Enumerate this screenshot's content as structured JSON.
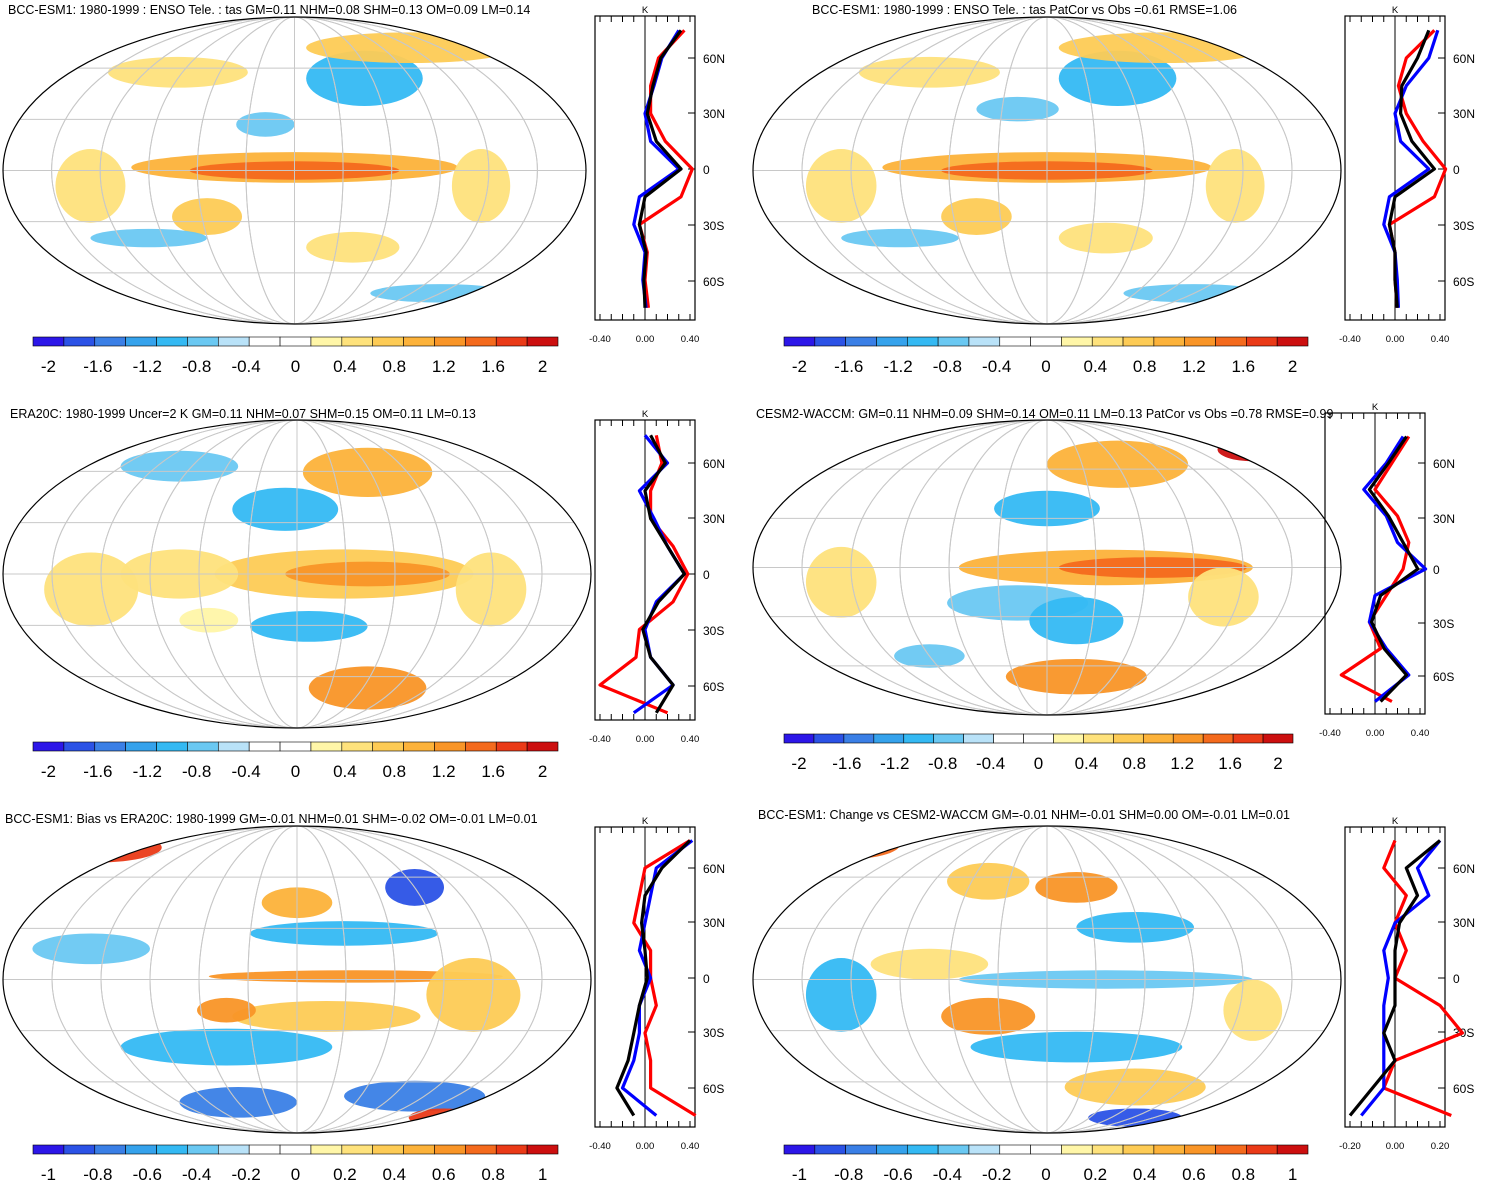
{
  "figure": {
    "colorscale": [
      "#2c16e8",
      "#2b52e6",
      "#3a7fe6",
      "#35a2ec",
      "#34b9f3",
      "#6ac8f2",
      "#b9e2f8",
      "#ffffff",
      "#ffffff",
      "#fff6a8",
      "#fee27c",
      "#fdcb55",
      "#fcb23a",
      "#f99527",
      "#f46a1d",
      "#ea3a17",
      "#cc0f0f"
    ],
    "series_colors": {
      "model": "#ff0000",
      "obs": "#0000ff",
      "ensemble": "#000000"
    }
  },
  "chart_data": [
    {
      "id": "p1",
      "type": "heatmap",
      "title": "BCC-ESM1: 1980-1999 : ENSO Tele. : tas GM=0.11 NHM=0.08 SHM=0.13 OM=0.09 LM=0.14",
      "colorbar_ticks": [
        "-2",
        "-1.6",
        "-1.2",
        "-0.8",
        "-0.4",
        "0",
        "0.4",
        "0.8",
        "1.2",
        "1.6",
        "2"
      ],
      "zonal": {
        "type": "line",
        "unit": "K",
        "xlim": [
          -0.4,
          0.4
        ],
        "xticks": [
          "-0.40",
          "0.00",
          "0.40"
        ],
        "lat_ticks": [
          "60N",
          "30N",
          "0",
          "30S",
          "60S"
        ],
        "lat": [
          75,
          60,
          45,
          30,
          15,
          0,
          -15,
          -30,
          -45,
          -60,
          -75
        ],
        "series": [
          {
            "color": "red",
            "values": [
              0.35,
              0.12,
              0.05,
              0.05,
              0.18,
              0.42,
              0.32,
              -0.05,
              0.02,
              0.0,
              0.03
            ]
          },
          {
            "color": "blue",
            "values": [
              0.3,
              0.15,
              0.08,
              0.0,
              0.05,
              0.3,
              -0.05,
              -0.1,
              0.0,
              -0.02,
              0.01
            ]
          },
          {
            "color": "black",
            "values": [
              0.32,
              0.14,
              0.07,
              0.02,
              0.1,
              0.32,
              0.0,
              -0.05,
              0.01,
              -0.01,
              0.0
            ]
          }
        ]
      }
    },
    {
      "id": "p2",
      "type": "heatmap",
      "title": "BCC-ESM1: 1980-1999 : ENSO Tele. : tas PatCor vs Obs =0.61 RMSE=1.06",
      "colorbar_ticks": [
        "-2",
        "-1.6",
        "-1.2",
        "-0.8",
        "-0.4",
        "0",
        "0.4",
        "0.8",
        "1.2",
        "1.6",
        "2"
      ],
      "zonal": {
        "type": "line",
        "unit": "K",
        "xlim": [
          -0.4,
          0.4
        ],
        "xticks": [
          "-0.40",
          "0.00",
          "0.40"
        ],
        "lat_ticks": [
          "60N",
          "30N",
          "0",
          "30S",
          "60S"
        ],
        "lat": [
          75,
          60,
          45,
          30,
          15,
          0,
          -15,
          -30,
          -45,
          -60,
          -75
        ],
        "series": [
          {
            "color": "red",
            "values": [
              0.35,
              0.1,
              0.03,
              0.1,
              0.25,
              0.45,
              0.35,
              -0.05,
              0.0,
              0.0,
              0.02
            ]
          },
          {
            "color": "blue",
            "values": [
              0.38,
              0.3,
              0.1,
              0.0,
              0.05,
              0.3,
              -0.05,
              -0.1,
              0.0,
              0.02,
              0.03
            ]
          },
          {
            "color": "black",
            "values": [
              0.3,
              0.2,
              0.06,
              0.05,
              0.15,
              0.35,
              0.0,
              -0.05,
              0.0,
              0.0,
              0.02
            ]
          }
        ]
      }
    },
    {
      "id": "p3",
      "type": "heatmap",
      "title": "ERA20C: 1980-1999 Uncer=2 K GM=0.11 NHM=0.07 SHM=0.15 OM=0.11 LM=0.13",
      "colorbar_ticks": [
        "-2",
        "-1.6",
        "-1.2",
        "-0.8",
        "-0.4",
        "0",
        "0.4",
        "0.8",
        "1.2",
        "1.6",
        "2"
      ],
      "zonal": {
        "type": "line",
        "unit": "K",
        "xlim": [
          -0.4,
          0.4
        ],
        "xticks": [
          "-0.40",
          "0.00",
          "0.40"
        ],
        "lat_ticks": [
          "60N",
          "30N",
          "0",
          "30S",
          "60S"
        ],
        "lat": [
          75,
          60,
          45,
          30,
          15,
          0,
          -15,
          -30,
          -45,
          -60,
          -75
        ],
        "series": [
          {
            "color": "red",
            "values": [
              0.1,
              0.15,
              0.05,
              0.05,
              0.25,
              0.38,
              0.25,
              -0.05,
              -0.08,
              -0.4,
              0.2
            ]
          },
          {
            "color": "blue",
            "values": [
              0.0,
              0.2,
              -0.05,
              0.08,
              0.2,
              0.35,
              0.1,
              0.0,
              0.05,
              0.25,
              -0.1
            ]
          },
          {
            "color": "black",
            "values": [
              0.05,
              0.18,
              0.0,
              0.05,
              0.2,
              0.35,
              0.12,
              -0.02,
              0.05,
              0.25,
              0.1
            ]
          }
        ]
      }
    },
    {
      "id": "p4",
      "type": "heatmap",
      "title": "CESM2-WACCM: GM=0.11 NHM=0.09 SHM=0.14 OM=0.11 LM=0.13 PatCor vs Obs =0.78 RMSE=0.99",
      "colorbar_ticks": [
        "-2",
        "-1.6",
        "-1.2",
        "-0.8",
        "-0.4",
        "0",
        "0.4",
        "0.8",
        "1.2",
        "1.6",
        "2"
      ],
      "zonal": {
        "type": "line",
        "unit": "K",
        "xlim": [
          -0.4,
          0.4
        ],
        "xticks": [
          "-0.40",
          "0.00",
          "0.40"
        ],
        "lat_ticks": [
          "60N",
          "30N",
          "0",
          "30S",
          "60S"
        ],
        "lat": [
          75,
          60,
          45,
          30,
          15,
          0,
          -15,
          -30,
          -45,
          -60,
          -75
        ],
        "series": [
          {
            "color": "red",
            "values": [
              0.3,
              0.15,
              0.0,
              0.2,
              0.3,
              0.25,
              0.1,
              -0.05,
              0.05,
              -0.3,
              0.15
            ]
          },
          {
            "color": "blue",
            "values": [
              0.25,
              0.1,
              -0.1,
              0.1,
              0.2,
              0.45,
              0.0,
              -0.05,
              0.1,
              0.3,
              0.0
            ]
          },
          {
            "color": "black",
            "values": [
              0.28,
              0.12,
              -0.05,
              0.12,
              0.25,
              0.38,
              0.05,
              -0.03,
              0.08,
              0.28,
              0.05
            ]
          }
        ]
      }
    },
    {
      "id": "p5",
      "type": "heatmap",
      "title": "BCC-ESM1: Bias vs ERA20C: 1980-1999 GM=-0.01 NHM=0.01 SHM=-0.02 OM=-0.01 LM=0.01",
      "colorbar_ticks": [
        "-1",
        "-0.8",
        "-0.6",
        "-0.4",
        "-0.2",
        "0",
        "0.2",
        "0.4",
        "0.6",
        "0.8",
        "1"
      ],
      "zonal": {
        "type": "line",
        "unit": "K",
        "xlim": [
          -0.4,
          0.4
        ],
        "xticks": [
          "-0.40",
          "0.00",
          "0.40"
        ],
        "lat_ticks": [
          "60N",
          "30N",
          "0",
          "30S",
          "60S"
        ],
        "lat": [
          75,
          60,
          45,
          30,
          15,
          0,
          -15,
          -30,
          -45,
          -60,
          -75
        ],
        "series": [
          {
            "color": "red",
            "values": [
              0.4,
              0.0,
              -0.05,
              -0.1,
              0.05,
              0.05,
              0.1,
              0.0,
              0.05,
              0.05,
              0.45
            ]
          },
          {
            "color": "blue",
            "values": [
              0.42,
              0.1,
              0.05,
              0.0,
              -0.05,
              0.05,
              -0.05,
              -0.05,
              -0.1,
              -0.2,
              0.1
            ]
          },
          {
            "color": "black",
            "values": [
              0.4,
              0.15,
              0.0,
              -0.03,
              0.0,
              0.02,
              -0.05,
              -0.1,
              -0.15,
              -0.25,
              -0.1
            ]
          }
        ]
      }
    },
    {
      "id": "p6",
      "type": "heatmap",
      "title": "BCC-ESM1: Change vs CESM2-WACCM GM=-0.01 NHM=-0.01 SHM=0.00 OM=-0.01 LM=0.01",
      "colorbar_ticks": [
        "-1",
        "-0.8",
        "-0.6",
        "-0.4",
        "-0.2",
        "0",
        "0.2",
        "0.4",
        "0.6",
        "0.8",
        "1"
      ],
      "zonal": {
        "type": "line",
        "unit": "K",
        "xlim": [
          -0.2,
          0.2
        ],
        "xticks": [
          "-0.20",
          "0.00",
          "0.20"
        ],
        "lat_ticks": [
          "60N",
          "30N",
          "0",
          "30S",
          "60S"
        ],
        "lat": [
          75,
          60,
          45,
          30,
          15,
          0,
          -15,
          -30,
          -45,
          -60,
          -75
        ],
        "series": [
          {
            "color": "red",
            "values": [
              0.0,
              -0.05,
              0.05,
              0.0,
              0.05,
              0.0,
              0.2,
              0.3,
              0.0,
              -0.05,
              0.25
            ]
          },
          {
            "color": "blue",
            "values": [
              0.2,
              0.1,
              0.15,
              0.0,
              -0.05,
              -0.03,
              -0.05,
              -0.05,
              -0.05,
              -0.05,
              -0.15
            ]
          },
          {
            "color": "black",
            "values": [
              0.2,
              0.05,
              0.1,
              0.02,
              0.0,
              0.0,
              0.0,
              -0.05,
              0.0,
              -0.1,
              -0.2
            ]
          }
        ]
      }
    }
  ]
}
